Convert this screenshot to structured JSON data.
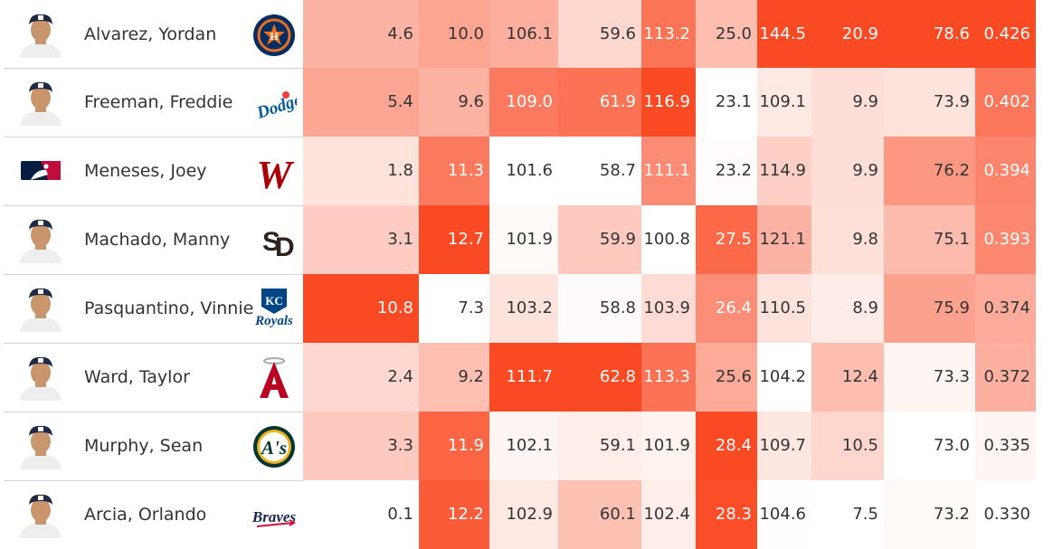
{
  "table": {
    "rows": [
      {
        "player": "Alvarez, Yordan",
        "team_logo": "astros-logo",
        "avatar": "player-headshot",
        "values": [
          "4.6",
          "10.0",
          "106.1",
          "59.6",
          "113.2",
          "25.0",
          "144.5",
          "20.9",
          "78.6",
          "0.426"
        ]
      },
      {
        "player": "Freeman, Freddie",
        "team_logo": "dodgers-logo",
        "avatar": "player-headshot",
        "values": [
          "5.4",
          "9.6",
          "109.0",
          "61.9",
          "116.9",
          "23.1",
          "109.1",
          "9.9",
          "73.9",
          "0.402"
        ]
      },
      {
        "player": "Meneses, Joey",
        "team_logo": "nationals-logo",
        "avatar": "mlb-logo-placeholder",
        "values": [
          "1.8",
          "11.3",
          "101.6",
          "58.7",
          "111.1",
          "23.2",
          "114.9",
          "9.9",
          "76.2",
          "0.394"
        ]
      },
      {
        "player": "Machado, Manny",
        "team_logo": "padres-logo",
        "avatar": "player-headshot",
        "values": [
          "3.1",
          "12.7",
          "101.9",
          "59.9",
          "100.8",
          "27.5",
          "121.1",
          "9.8",
          "75.1",
          "0.393"
        ]
      },
      {
        "player": "Pasquantino, Vinnie",
        "team_logo": "royals-logo",
        "avatar": "player-headshot",
        "values": [
          "10.8",
          "7.3",
          "103.2",
          "58.8",
          "103.9",
          "26.4",
          "110.5",
          "8.9",
          "75.9",
          "0.374"
        ]
      },
      {
        "player": "Ward, Taylor",
        "team_logo": "angels-logo",
        "avatar": "player-headshot",
        "values": [
          "2.4",
          "9.2",
          "111.7",
          "62.8",
          "113.3",
          "25.6",
          "104.2",
          "12.4",
          "73.3",
          "0.372"
        ]
      },
      {
        "player": "Murphy, Sean",
        "team_logo": "athletics-logo",
        "avatar": "player-headshot",
        "values": [
          "3.3",
          "11.9",
          "102.1",
          "59.1",
          "101.9",
          "28.4",
          "109.7",
          "10.5",
          "73.0",
          "0.335"
        ]
      },
      {
        "player": "Arcia, Orlando",
        "team_logo": "braves-logo",
        "avatar": "player-headshot",
        "values": [
          "0.1",
          "12.2",
          "102.9",
          "60.1",
          "102.4",
          "28.3",
          "104.6",
          "7.5",
          "73.2",
          "0.330"
        ]
      }
    ]
  },
  "colors": {
    "heat_low": "#ffffff",
    "heat_high": "#fa4a24",
    "text_dark": "#333333",
    "text_light": "#ffffff",
    "border": "#d4d4d4"
  }
}
